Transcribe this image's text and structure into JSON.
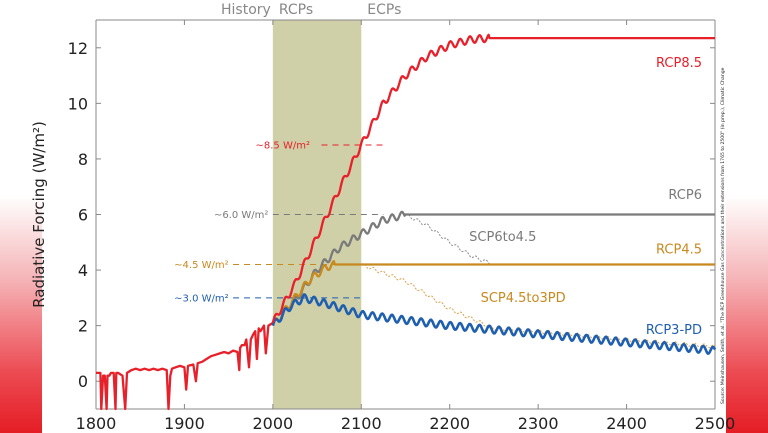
{
  "chart_data": {
    "type": "line",
    "title": "",
    "xlabel": "",
    "ylabel": "Radiative Forcing (W/m²)",
    "xlim": [
      1800,
      2500
    ],
    "ylim": [
      -1,
      13
    ],
    "xticks": [
      "1800",
      "1900",
      "2000",
      "2100",
      "2200",
      "2300",
      "2400",
      "2500"
    ],
    "yticks": [
      "0",
      "2",
      "4",
      "6",
      "8",
      "10",
      "12"
    ],
    "grid": false,
    "eras": [
      {
        "label": "History",
        "range": [
          1800,
          2000
        ]
      },
      {
        "label": "RCPs",
        "range": [
          2000,
          2100
        ],
        "shaded": true
      },
      {
        "label": "ECPs",
        "range": [
          2100,
          2500
        ]
      }
    ],
    "series": [
      {
        "name": "History",
        "color": "#e8202a",
        "x": [
          1800,
          1805,
          1806,
          1808,
          1810,
          1812,
          1813,
          1815,
          1817,
          1820,
          1822,
          1823,
          1825,
          1830,
          1833,
          1835,
          1840,
          1845,
          1850,
          1855,
          1860,
          1865,
          1870,
          1875,
          1880,
          1882,
          1884,
          1886,
          1890,
          1895,
          1900,
          1902,
          1904,
          1910,
          1913,
          1915,
          1920,
          1925,
          1930,
          1935,
          1940,
          1945,
          1950,
          1955,
          1960,
          1962,
          1963,
          1965,
          1968,
          1970,
          1973,
          1975,
          1978,
          1980,
          1982,
          1984,
          1986,
          1990,
          1992,
          1995,
          2000
        ],
        "values": [
          0.3,
          0.3,
          -1,
          0.2,
          0.2,
          -1,
          0.2,
          0.2,
          0.3,
          0.3,
          -1,
          0.3,
          0.3,
          0.2,
          -1,
          0.3,
          0.4,
          0.45,
          0.4,
          0.45,
          0.4,
          0.45,
          0.4,
          0.45,
          0.4,
          -1,
          0.2,
          0.45,
          0.5,
          0.55,
          0.5,
          -0.3,
          0.55,
          0.6,
          0.0,
          0.65,
          0.7,
          0.8,
          0.9,
          0.95,
          1.0,
          1.05,
          1.0,
          1.1,
          1.05,
          0.4,
          1.2,
          1.3,
          1.3,
          1.5,
          0.5,
          1.5,
          1.7,
          1.8,
          0.8,
          1.9,
          1.8,
          2.0,
          1.0,
          2.0,
          2.1
        ]
      },
      {
        "name": "RCP8.5",
        "color": "#e8202a",
        "x": [
          2000,
          2025,
          2050,
          2075,
          2100,
          2125,
          2150,
          2175,
          2200,
          2225,
          2245,
          2500
        ],
        "values": [
          2.1,
          3.5,
          5.2,
          6.9,
          8.5,
          10.0,
          11.0,
          11.7,
          12.1,
          12.3,
          12.35,
          12.35
        ]
      },
      {
        "name": "RCP6",
        "color": "#7a7a7a",
        "x": [
          2000,
          2025,
          2050,
          2075,
          2100,
          2125,
          2150,
          2500
        ],
        "values": [
          2.0,
          2.9,
          4.0,
          4.8,
          5.3,
          5.8,
          6.0,
          6.0
        ]
      },
      {
        "name": "RCP4.5",
        "color": "#c8891e",
        "x": [
          2000,
          2020,
          2040,
          2060,
          2070,
          2100,
          2150,
          2500
        ],
        "values": [
          2.0,
          2.8,
          3.6,
          4.1,
          4.2,
          4.2,
          4.2,
          4.2
        ]
      },
      {
        "name": "RCP3-PD",
        "color": "#1f5fb0",
        "x": [
          2000,
          2020,
          2035,
          2060,
          2100,
          2150,
          2200,
          2250,
          2300,
          2400,
          2500
        ],
        "values": [
          2.0,
          2.7,
          3.0,
          2.8,
          2.4,
          2.2,
          2.0,
          1.85,
          1.7,
          1.4,
          1.1
        ]
      },
      {
        "name": "SCP6to4.5",
        "color": "#8a8a8a",
        "dotted": true,
        "x": [
          2150,
          2175,
          2200,
          2225,
          2250
        ],
        "values": [
          6.0,
          5.6,
          5.0,
          4.5,
          4.2
        ]
      },
      {
        "name": "SCP4.5to3PD",
        "color": "#d9a24a",
        "dotted": true,
        "x": [
          2100,
          2150,
          2200,
          2250,
          2300,
          2400,
          2500
        ],
        "values": [
          4.2,
          3.6,
          2.6,
          1.9,
          1.8,
          1.5,
          1.25
        ]
      }
    ],
    "annotations": [
      {
        "text": "~8.5 W/m²",
        "value": 8.5,
        "color": "#e8202a"
      },
      {
        "text": "~6.0 W/m²",
        "value": 6.0,
        "color": "#7a7a7a"
      },
      {
        "text": "~4.5 W/m²",
        "value": 4.2,
        "color": "#c8891e"
      },
      {
        "text": "~3.0 W/m²",
        "value": 3.0,
        "color": "#1f5fb0"
      }
    ],
    "series_labels": [
      {
        "text": "RCP8.5",
        "color": "#e8202a"
      },
      {
        "text": "RCP6",
        "color": "#7a7a7a"
      },
      {
        "text": "SCP6to4.5",
        "color": "#7a7a7a"
      },
      {
        "text": "RCP4.5",
        "color": "#c8891e"
      },
      {
        "text": "SCP4.5to3PD",
        "color": "#c8891e"
      },
      {
        "text": "RCP3-PD",
        "color": "#1f5fb0"
      }
    ],
    "source": "Source: Meinshausen, Smith, et al. \"The RCP Greenhouse Gas Concentrations and their extensions from 1765 to 2500\" (in prep.), Climatic Change",
    "shade_color": "#cfcfa8"
  }
}
